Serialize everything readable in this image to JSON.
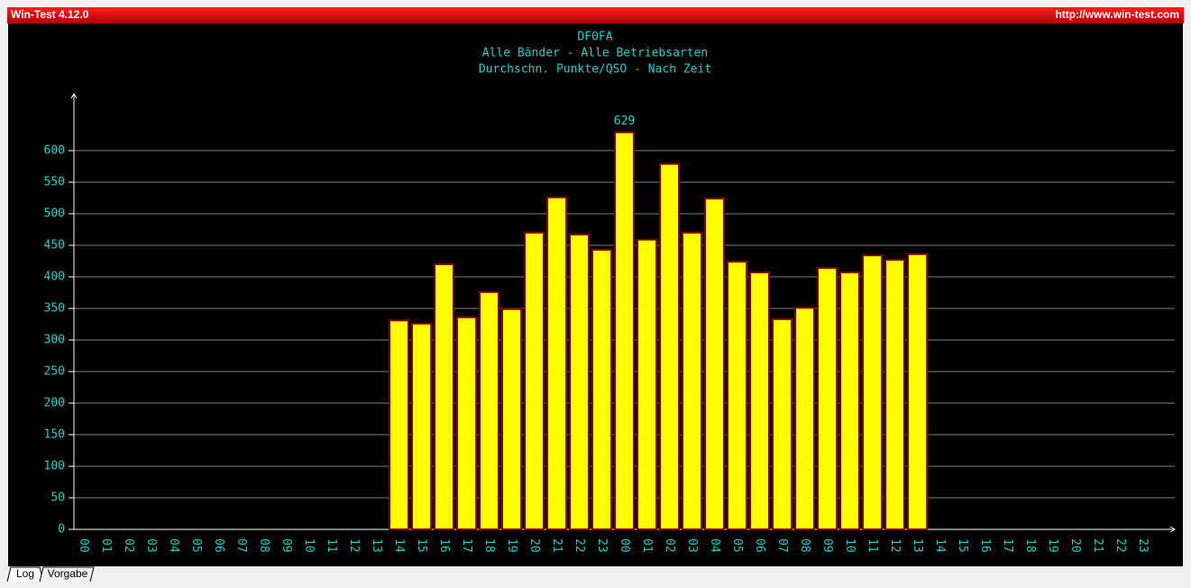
{
  "window": {
    "title": "Win-Test 4.12.0",
    "url": "http://www.win-test.com"
  },
  "tabs": [
    "Log",
    "Vorgabe"
  ],
  "chart_data": {
    "type": "bar",
    "title": "DF0FA",
    "subtitle": [
      "Alle Bänder - Alle Betriebsarten",
      "Durchschn. Punkte/QSO - Nach Zeit"
    ],
    "categories": [
      "00",
      "01",
      "02",
      "03",
      "04",
      "05",
      "06",
      "07",
      "08",
      "09",
      "10",
      "11",
      "12",
      "13",
      "14",
      "15",
      "16",
      "17",
      "18",
      "19",
      "20",
      "21",
      "22",
      "23",
      "00",
      "01",
      "02",
      "03",
      "04",
      "05",
      "06",
      "07",
      "08",
      "09",
      "10",
      "11",
      "12",
      "13",
      "14",
      "15",
      "16",
      "17",
      "18",
      "19",
      "20",
      "21",
      "22",
      "23"
    ],
    "values": [
      null,
      null,
      null,
      null,
      null,
      null,
      null,
      null,
      null,
      null,
      null,
      null,
      null,
      null,
      331,
      326,
      420,
      336,
      376,
      349,
      470,
      526,
      467,
      443,
      629,
      459,
      579,
      470,
      524,
      424,
      407,
      333,
      351,
      414,
      407,
      434,
      427,
      436,
      null,
      null,
      null,
      null,
      null,
      null,
      null,
      null,
      null,
      null
    ],
    "color": "#ffff00",
    "edge_color": "#800000",
    "ylim": [
      0,
      690
    ],
    "yticks": [
      0,
      50,
      100,
      150,
      200,
      250,
      300,
      350,
      400,
      450,
      500,
      550,
      600
    ],
    "grid": true
  }
}
